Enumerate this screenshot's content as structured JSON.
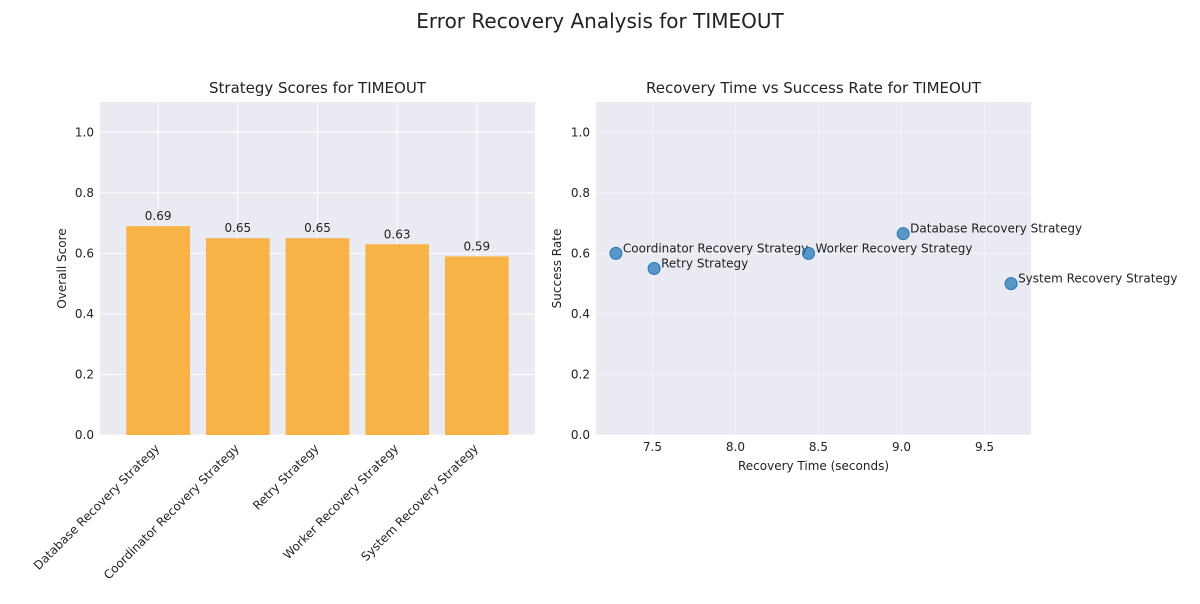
{
  "figure": {
    "title": "Error Recovery Analysis for TIMEOUT"
  },
  "chart_data": [
    {
      "type": "bar",
      "title": "Strategy Scores for TIMEOUT",
      "xlabel": "",
      "ylabel": "Overall Score",
      "categories": [
        "Database Recovery Strategy",
        "Coordinator Recovery Strategy",
        "Retry Strategy",
        "Worker Recovery Strategy",
        "System Recovery Strategy"
      ],
      "values": [
        0.69,
        0.65,
        0.65,
        0.63,
        0.59
      ],
      "data_labels": [
        "0.69",
        "0.65",
        "0.65",
        "0.63",
        "0.59"
      ],
      "ylim": [
        0,
        1.1
      ],
      "yticks": [
        0.0,
        0.2,
        0.4,
        0.6,
        0.8,
        1.0
      ],
      "ytick_labels": [
        "0.0",
        "0.2",
        "0.4",
        "0.6",
        "0.8",
        "1.0"
      ],
      "grid": true,
      "color": "#f9ad33"
    },
    {
      "type": "scatter",
      "title": "Recovery Time vs Success Rate for TIMEOUT",
      "xlabel": "Recovery Time (seconds)",
      "ylabel": "Success Rate",
      "points": [
        {
          "label": "Coordinator Recovery Strategy",
          "x": 7.28,
          "y": 0.6
        },
        {
          "label": "Retry Strategy",
          "x": 7.51,
          "y": 0.55
        },
        {
          "label": "Worker Recovery Strategy",
          "x": 8.44,
          "y": 0.6
        },
        {
          "label": "Database Recovery Strategy",
          "x": 9.01,
          "y": 0.665
        },
        {
          "label": "System Recovery Strategy",
          "x": 9.66,
          "y": 0.5
        }
      ],
      "xlim": [
        7.16,
        9.78
      ],
      "ylim": [
        0,
        1.1
      ],
      "xticks": [
        7.5,
        8.0,
        8.5,
        9.0,
        9.5
      ],
      "xtick_labels": [
        "7.5",
        "8.0",
        "8.5",
        "9.0",
        "9.5"
      ],
      "yticks": [
        0.0,
        0.2,
        0.4,
        0.6,
        0.8,
        1.0
      ],
      "ytick_labels": [
        "0.0",
        "0.2",
        "0.4",
        "0.6",
        "0.8",
        "1.0"
      ],
      "grid": true,
      "color": "#2878b5"
    }
  ]
}
